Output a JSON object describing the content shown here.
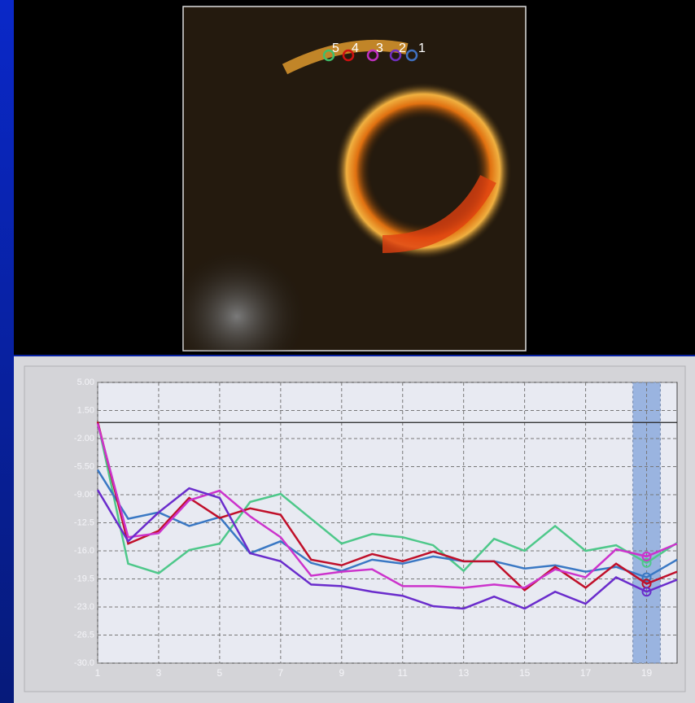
{
  "image": {
    "points": [
      {
        "label": "5",
        "color": "#3fbf6a"
      },
      {
        "label": "4",
        "color": "#d01010"
      },
      {
        "label": "3",
        "color": "#c030c0"
      },
      {
        "label": "2",
        "color": "#7030c0"
      },
      {
        "label": "1",
        "color": "#4070c0"
      }
    ]
  },
  "chart_data": {
    "type": "line",
    "x": [
      1,
      2,
      3,
      4,
      5,
      6,
      7,
      8,
      9,
      10,
      11,
      12,
      13,
      14,
      15,
      16,
      17,
      18,
      19,
      20
    ],
    "series": [
      {
        "color": "#4ec88a",
        "values": [
          0.1,
          -17.6,
          -18.8,
          -15.9,
          -15.1,
          -9.9,
          -8.9,
          -12,
          -15.1,
          -13.9,
          -14.3,
          -15.3,
          -18.5,
          -14.5,
          -16,
          -12.9,
          -16,
          -15.3,
          -17.5,
          -15
        ]
      },
      {
        "color": "#3a78c4",
        "values": [
          -5.9,
          -12,
          -11.2,
          -12.9,
          -11.8,
          -16.3,
          -14.8,
          -17.5,
          -18.5,
          -17.1,
          -17.6,
          -16.7,
          -17.3,
          -17.3,
          -18.2,
          -17.8,
          -18.6,
          -18,
          -19.3,
          -17.1
        ]
      },
      {
        "color": "#c0102a",
        "values": [
          0.1,
          -15.1,
          -13.5,
          -9.4,
          -11.9,
          -10.7,
          -11.5,
          -17.1,
          -17.8,
          -16.4,
          -17.3,
          -16.1,
          -17.3,
          -17.3,
          -20.9,
          -18,
          -20.6,
          -17.6,
          -20.1,
          -18.6
        ]
      },
      {
        "color": "#cc33cc",
        "values": [
          -0.1,
          -14.3,
          -13.8,
          -9.7,
          -8.5,
          -11.7,
          -14.3,
          -19.1,
          -18.6,
          -18.3,
          -20.4,
          -20.4,
          -20.6,
          -20.2,
          -20.6,
          -18.3,
          -19.3,
          -15.8,
          -16.7,
          -15.1
        ]
      },
      {
        "color": "#6a2ccc",
        "values": [
          -8.4,
          -14.8,
          -11.2,
          -8.2,
          -9.4,
          -16.3,
          -17.3,
          -20.2,
          -20.4,
          -21.1,
          -21.6,
          -22.9,
          -23.2,
          -21.7,
          -23.2,
          -21.1,
          -22.6,
          -19.3,
          -21.1,
          -19.6
        ]
      }
    ],
    "xlim": [
      1,
      20
    ],
    "xticks": [
      1,
      3,
      5,
      7,
      9,
      11,
      13,
      15,
      17,
      19
    ],
    "ylim": [
      -30,
      5
    ],
    "yticks": [
      {
        "value": 5,
        "label": "5.00"
      },
      {
        "value": 1.5,
        "label": "1.50"
      },
      {
        "value": -2,
        "label": "-2.00"
      },
      {
        "value": -5.5,
        "label": "-5.50"
      },
      {
        "value": -9,
        "label": "-9.00"
      },
      -12.5,
      {
        "value": -16,
        "label": "-16.0"
      },
      -19.5,
      {
        "value": -23,
        "label": "-23.0"
      },
      -26.5,
      {
        "value": -30,
        "label": "-30.0"
      }
    ],
    "grid": true,
    "baseline": 0,
    "highlight_x": [
      18.55,
      19.45
    ],
    "markers_at": 19
  }
}
